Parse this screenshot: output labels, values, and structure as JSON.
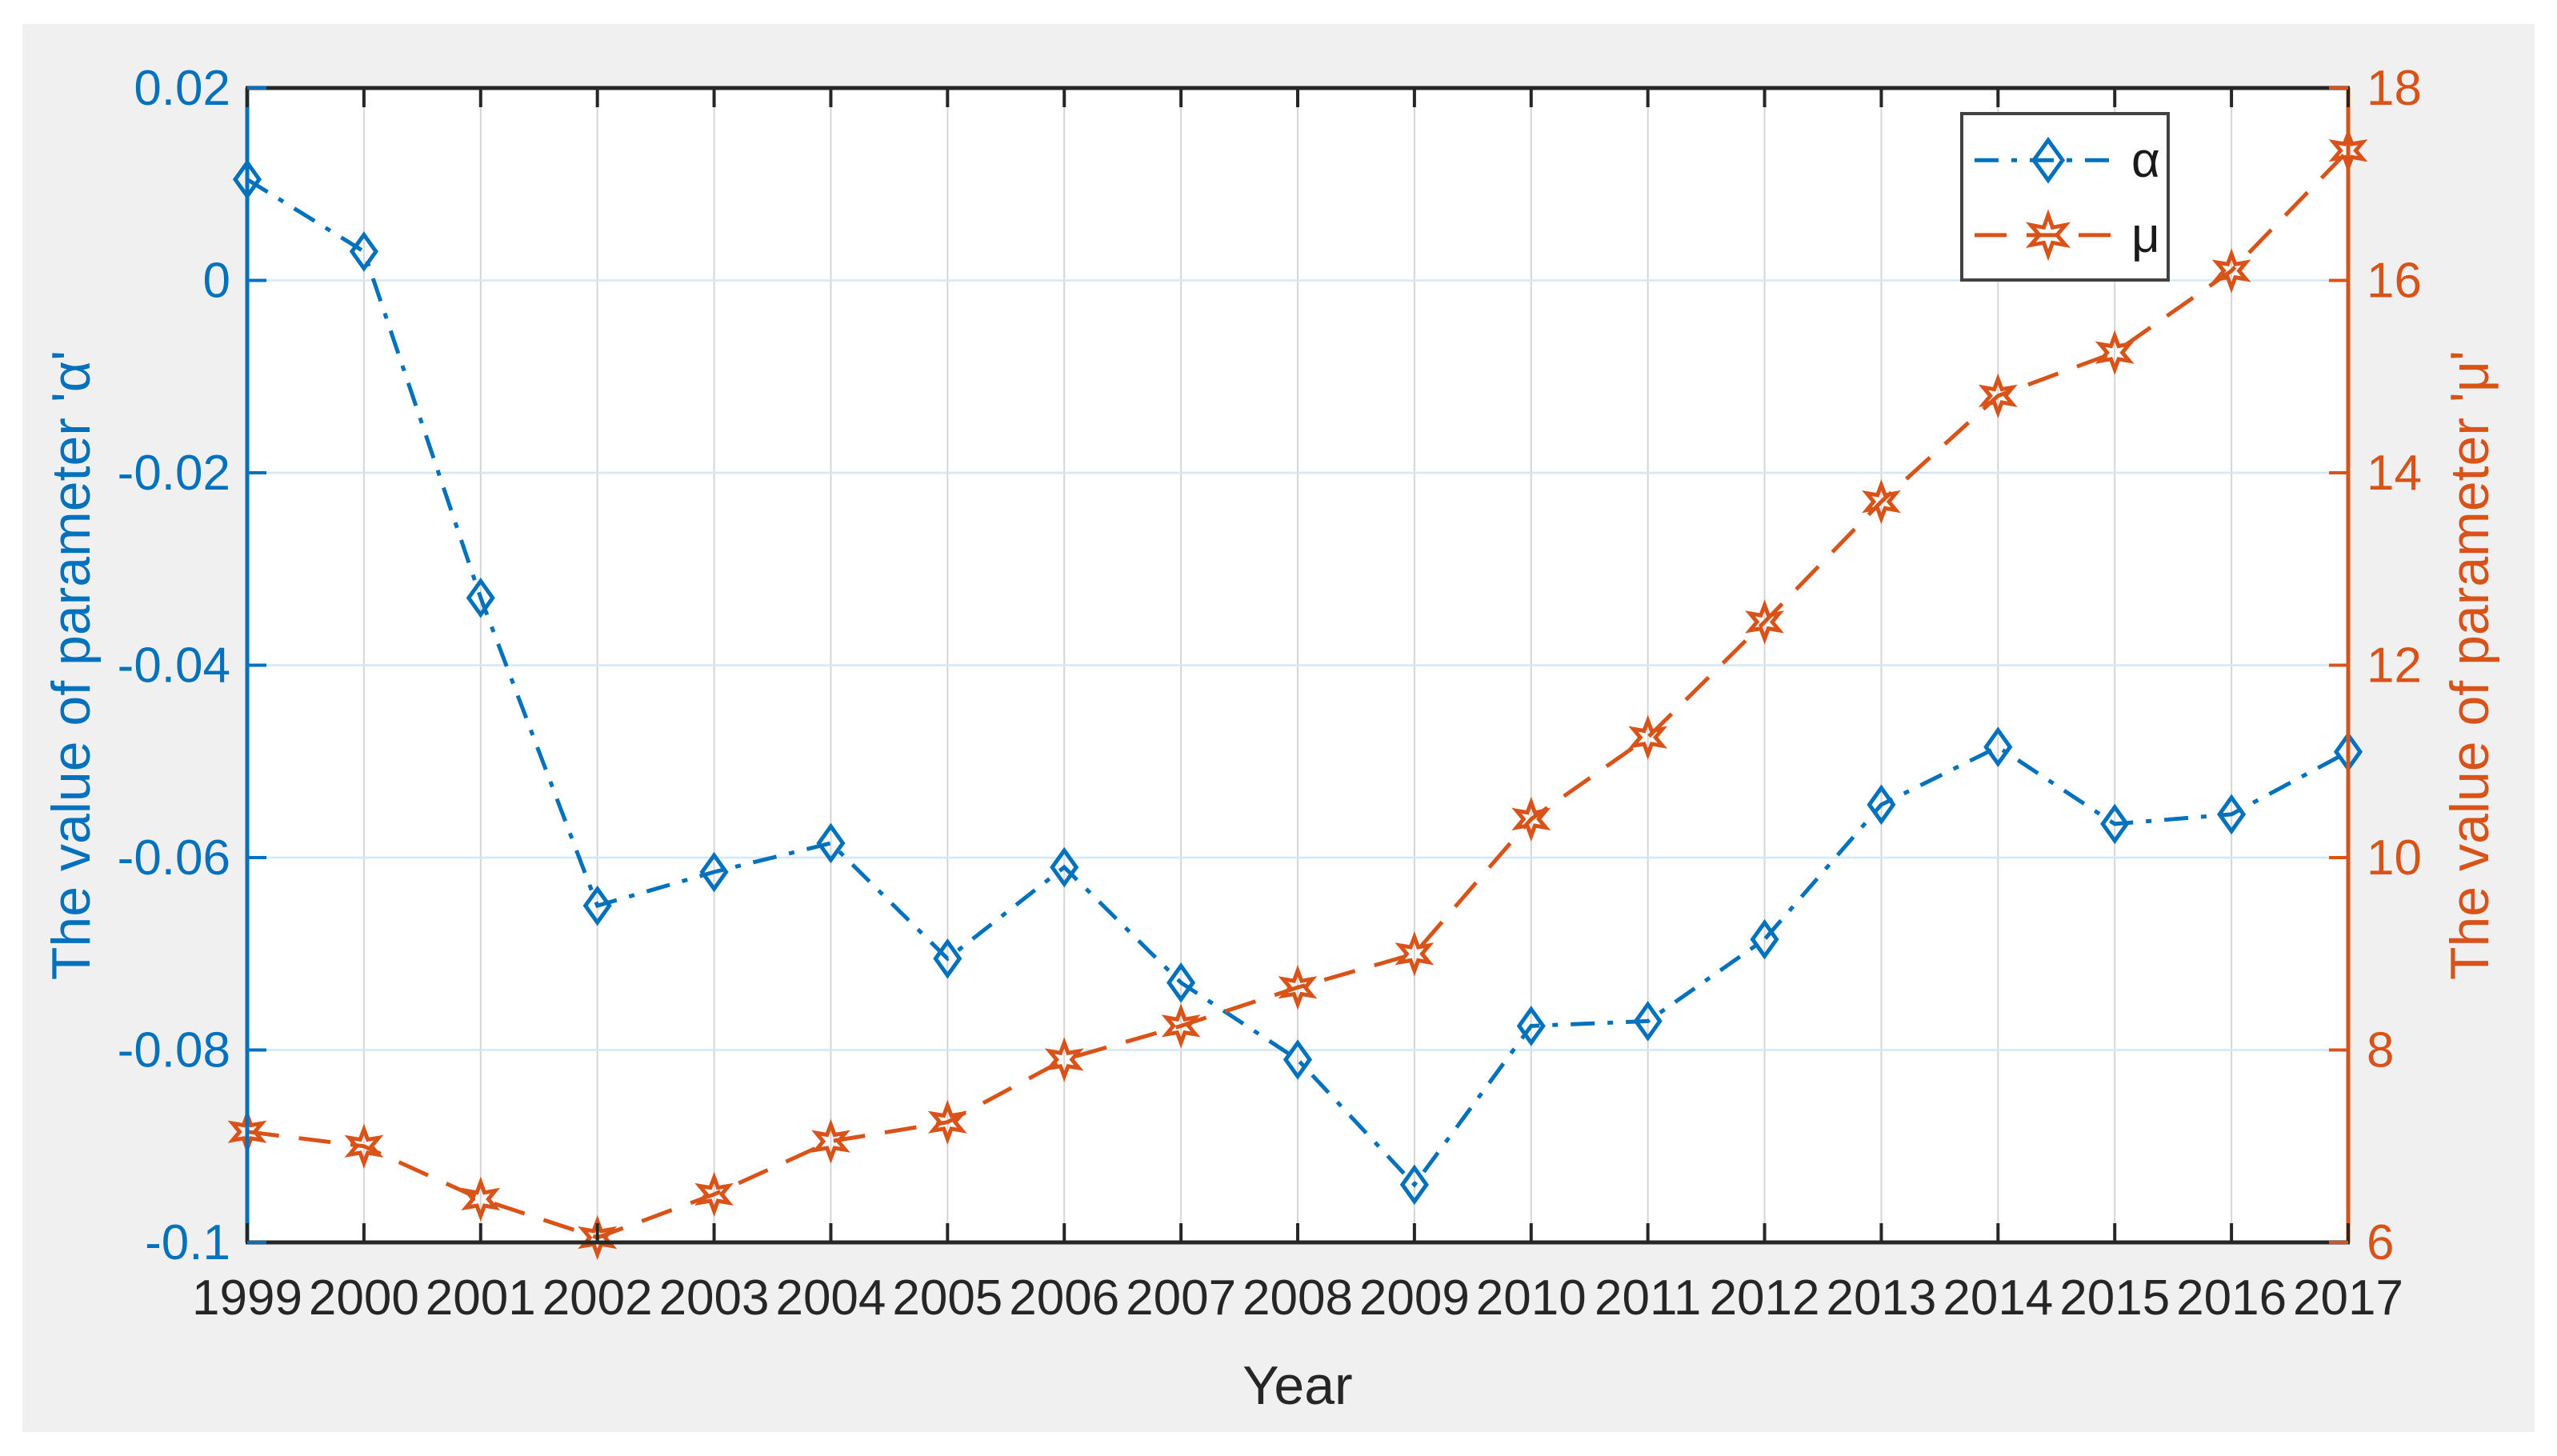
{
  "figure": {
    "background_color": "#F0F0F0",
    "plot_background_color": "#FFFFFF",
    "page_color": "#FFFFFF"
  },
  "chart_data": {
    "type": "line",
    "title": "",
    "xlabel": "Year",
    "x": [
      1999,
      2000,
      2001,
      2002,
      2003,
      2004,
      2005,
      2006,
      2007,
      2008,
      2009,
      2010,
      2011,
      2012,
      2013,
      2014,
      2015,
      2016,
      2017
    ],
    "x_tick_labels": [
      "1999",
      "2000",
      "2001",
      "2002",
      "2003",
      "2004",
      "2005",
      "2006",
      "2007",
      "2008",
      "2009",
      "2010",
      "2011",
      "2012",
      "2013",
      "2014",
      "2015",
      "2016",
      "2017"
    ],
    "x_axis_color": "#262626",
    "grid": {
      "on": true,
      "vertical_color": "#d5d5d5",
      "horizontal_color": "#d3e8f7"
    },
    "left_axis": {
      "label": "The value of parameter 'α'",
      "color": "#0072BD",
      "range": [
        -0.1,
        0.02
      ],
      "ticks": [
        0.02,
        0,
        -0.02,
        -0.04,
        -0.06,
        -0.08,
        -0.1
      ],
      "tick_labels": [
        "0.02",
        "0",
        "-0.02",
        "-0.04",
        "-0.06",
        "-0.08",
        "-0.1"
      ]
    },
    "right_axis": {
      "label": "The value of parameter 'μ'",
      "color": "#D95319",
      "range": [
        6,
        18
      ],
      "ticks": [
        18,
        16,
        14,
        12,
        10,
        8,
        6
      ],
      "tick_labels": [
        "18",
        "16",
        "14",
        "12",
        "10",
        "8",
        "6"
      ]
    },
    "series": [
      {
        "name": "α",
        "axis": "left",
        "color": "#0072BD",
        "line_style": "dash-dot",
        "marker": "diamond",
        "values": [
          0.0105,
          0.003,
          -0.033,
          -0.065,
          -0.0615,
          -0.0585,
          -0.0705,
          -0.061,
          -0.073,
          -0.081,
          -0.094,
          -0.0775,
          -0.077,
          -0.0685,
          -0.0545,
          -0.0485,
          -0.0565,
          -0.0555,
          -0.049
        ]
      },
      {
        "name": "μ",
        "axis": "right",
        "color": "#D95319",
        "line_style": "dashed",
        "marker": "hexagram",
        "values": [
          7.15,
          7.0,
          6.45,
          6.05,
          6.5,
          7.05,
          7.25,
          7.9,
          8.25,
          8.65,
          9.0,
          10.4,
          11.25,
          12.45,
          13.7,
          14.8,
          15.25,
          16.1,
          17.35
        ]
      }
    ],
    "legend": {
      "position": "top-right",
      "border_color": "#424242",
      "background_color": "#FFFFFF",
      "text_color": "#1a1a1a",
      "entries": [
        {
          "label": "α"
        },
        {
          "label": "μ"
        }
      ]
    }
  }
}
